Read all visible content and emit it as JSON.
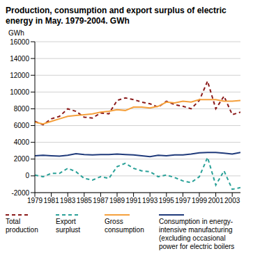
{
  "chart_data": {
    "type": "line",
    "title": "Production, consumption and export surplus of electric energy in May. 1979-2004. GWh",
    "y_label": "GWh",
    "x": [
      1979,
      1980,
      1981,
      1982,
      1983,
      1984,
      1985,
      1986,
      1987,
      1988,
      1989,
      1990,
      1991,
      1992,
      1993,
      1994,
      1995,
      1996,
      1997,
      1998,
      1999,
      2000,
      2001,
      2002,
      2003,
      2004
    ],
    "xlim": [
      1979,
      2004
    ],
    "xticks": [
      1979,
      1981,
      1983,
      1985,
      1987,
      1989,
      1991,
      1993,
      1995,
      1997,
      1999,
      2001,
      2003
    ],
    "ylim": [
      -2000,
      16000
    ],
    "yticks": [
      -2000,
      0,
      2000,
      4000,
      6000,
      8000,
      10000,
      12000,
      14000,
      16000
    ],
    "grid": true,
    "legend": "bottom",
    "series": [
      {
        "name": "Total production",
        "color": "#8b1a1a",
        "line_style": "dashed",
        "values": [
          6500,
          6100,
          6800,
          7100,
          8000,
          7700,
          7000,
          6900,
          7500,
          7400,
          9000,
          9300,
          9100,
          8800,
          8600,
          8200,
          8900,
          8500,
          8300,
          8000,
          9000,
          11300,
          8000,
          9500,
          7300,
          7600
        ]
      },
      {
        "name": "Export surplust",
        "color": "#2aa198",
        "line_style": "dashed",
        "values": [
          100,
          -100,
          300,
          300,
          900,
          500,
          -300,
          -500,
          -100,
          -300,
          1100,
          1500,
          900,
          600,
          500,
          -100,
          100,
          -200,
          -600,
          -800,
          -100,
          2200,
          -1100,
          600,
          -1600,
          -1400
        ]
      },
      {
        "name": "Gross consumption",
        "color": "#f5a03c",
        "line_style": "solid",
        "values": [
          6400,
          6200,
          6500,
          6800,
          7100,
          7200,
          7300,
          7400,
          7600,
          7700,
          7900,
          7800,
          8200,
          8200,
          8100,
          8300,
          8800,
          8700,
          8900,
          8800,
          9100,
          9100,
          9100,
          8900,
          8900,
          9000
        ]
      },
      {
        "name": "Consumption in energy-intensive manufacturing (excluding occasional power for electric boilers",
        "color": "#1f3a7a",
        "line_style": "solid",
        "values": [
          2400,
          2450,
          2400,
          2350,
          2450,
          2650,
          2550,
          2500,
          2550,
          2550,
          2600,
          2550,
          2500,
          2400,
          2300,
          2450,
          2400,
          2500,
          2500,
          2600,
          2750,
          2800,
          2800,
          2700,
          2600,
          2800
        ]
      }
    ]
  }
}
